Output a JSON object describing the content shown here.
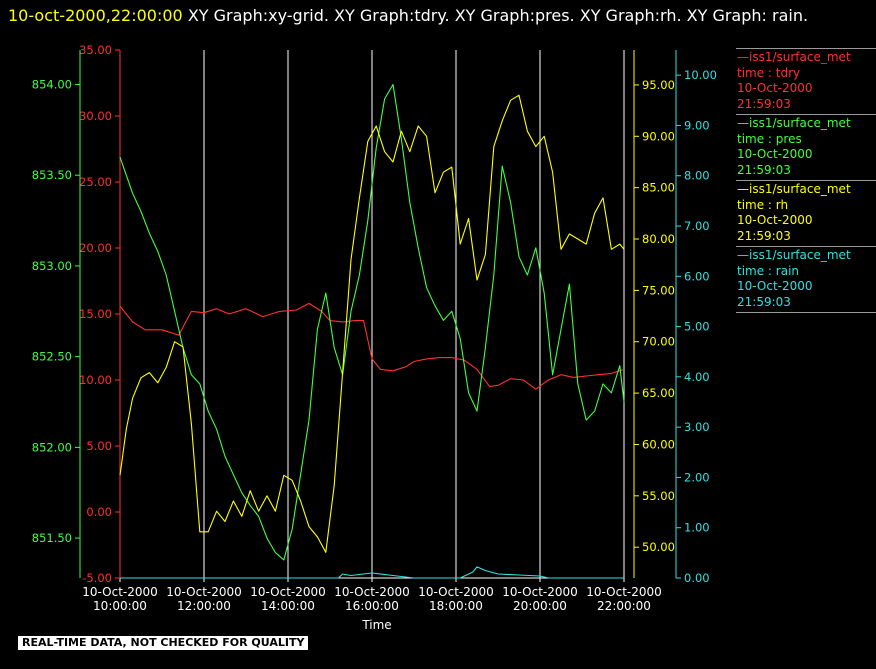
{
  "header": {
    "timestamp": "10-oct-2000,22:00:00",
    "graphs_text": " XY Graph:xy-grid.  XY Graph:tdry.  XY Graph:pres.  XY Graph:rh.  XY Graph: rain."
  },
  "disclaimer": "REAL-TIME DATA, NOT CHECKED FOR QUALITY",
  "colors": {
    "tdry": "#ff3030",
    "pres": "#40ff40",
    "rh": "#ffff00",
    "rain": "#30e0e0",
    "grid": "#ffffff"
  },
  "legend": [
    {
      "dataset": "iss1/surface_met",
      "label": "time : tdry",
      "date": "10-Oct-2000",
      "time": "21:59:03",
      "color": "#ff3030"
    },
    {
      "dataset": "iss1/surface_met",
      "label": "time : pres",
      "date": "10-Oct-2000",
      "time": "21:59:03",
      "color": "#40ff40"
    },
    {
      "dataset": "iss1/surface_met",
      "label": "time : rh",
      "date": "10-Oct-2000",
      "time": "21:59:03",
      "color": "#ffff00"
    },
    {
      "dataset": "iss1/surface_met",
      "label": "time : rain",
      "date": "10-Oct-2000",
      "time": "21:59:03",
      "color": "#30e0e0"
    }
  ],
  "chart_data": {
    "type": "line",
    "xlabel": "Time",
    "xlim": [
      10,
      22
    ],
    "x_ticks": [
      {
        "v": 10,
        "date": "10-Oct-2000",
        "time": "10:00:00"
      },
      {
        "v": 12,
        "date": "10-Oct-2000",
        "time": "12:00:00"
      },
      {
        "v": 14,
        "date": "10-Oct-2000",
        "time": "14:00:00"
      },
      {
        "v": 16,
        "date": "10-Oct-2000",
        "time": "16:00:00"
      },
      {
        "v": 18,
        "date": "10-Oct-2000",
        "time": "18:00:00"
      },
      {
        "v": 20,
        "date": "10-Oct-2000",
        "time": "20:00:00"
      },
      {
        "v": 22,
        "date": "10-Oct-2000",
        "time": "22:00:00"
      }
    ],
    "grid": true,
    "axes": {
      "tdry": {
        "range": [
          -5,
          35
        ],
        "ticks": [
          "-5.00",
          "0.00",
          "5.00",
          "10.00",
          "15.00",
          "20.00",
          "25.00",
          "30.00",
          "35.00"
        ]
      },
      "pres": {
        "range": [
          851.28,
          854.19
        ],
        "ticks": [
          "851.50",
          "852.00",
          "852.50",
          "853.00",
          "853.50",
          "854.00"
        ]
      },
      "rh": {
        "range": [
          47.0,
          98.4
        ],
        "ticks": [
          "50.00",
          "55.00",
          "60.00",
          "65.00",
          "70.00",
          "75.00",
          "80.00",
          "85.00",
          "90.00",
          "95.00"
        ]
      },
      "rain": {
        "range": [
          0,
          10.5
        ],
        "ticks": [
          "0.00",
          "1.00",
          "2.00",
          "3.00",
          "4.00",
          "5.00",
          "6.00",
          "7.00",
          "8.00",
          "9.00",
          "10.00"
        ]
      }
    },
    "series": [
      {
        "key": "tdry",
        "x": [
          10.0,
          10.3,
          10.6,
          11.0,
          11.4,
          11.7,
          12.0,
          12.3,
          12.6,
          13.0,
          13.4,
          13.8,
          14.2,
          14.5,
          14.8,
          15.0,
          15.3,
          15.6,
          15.8,
          16.0,
          16.2,
          16.5,
          16.8,
          17.0,
          17.3,
          17.6,
          17.9,
          18.2,
          18.5,
          18.8,
          19.0,
          19.3,
          19.6,
          19.9,
          20.2,
          20.5,
          20.8,
          21.1,
          21.4,
          21.7,
          22.0
        ],
        "y": [
          15.6,
          14.4,
          13.8,
          13.8,
          13.4,
          15.2,
          15.1,
          15.4,
          15.0,
          15.4,
          14.8,
          15.2,
          15.3,
          15.8,
          15.2,
          14.5,
          14.4,
          14.5,
          14.5,
          11.6,
          10.8,
          10.7,
          11.0,
          11.4,
          11.6,
          11.7,
          11.7,
          11.5,
          10.8,
          9.5,
          9.6,
          10.1,
          10.0,
          9.3,
          10.0,
          10.4,
          10.2,
          10.3,
          10.4,
          10.5,
          10.8
        ]
      },
      {
        "key": "pres",
        "x": [
          10.0,
          10.15,
          10.3,
          10.5,
          10.7,
          10.9,
          11.1,
          11.3,
          11.5,
          11.7,
          11.9,
          12.1,
          12.3,
          12.5,
          12.7,
          12.9,
          13.1,
          13.3,
          13.5,
          13.7,
          13.9,
          14.1,
          14.3,
          14.5,
          14.7,
          14.9,
          15.1,
          15.3,
          15.5,
          15.7,
          15.9,
          16.1,
          16.3,
          16.5,
          16.7,
          16.9,
          17.1,
          17.3,
          17.5,
          17.7,
          17.9,
          18.1,
          18.3,
          18.5,
          18.7,
          18.9,
          19.1,
          19.3,
          19.5,
          19.7,
          19.9,
          20.1,
          20.3,
          20.5,
          20.7,
          20.9,
          21.1,
          21.3,
          21.5,
          21.7,
          21.9,
          22.0
        ],
        "y": [
          853.6,
          853.5,
          853.4,
          853.3,
          853.18,
          853.08,
          852.95,
          852.75,
          852.55,
          852.4,
          852.35,
          852.2,
          852.1,
          851.95,
          851.85,
          851.75,
          851.68,
          851.62,
          851.5,
          851.42,
          851.38,
          851.55,
          851.85,
          852.15,
          852.65,
          852.85,
          852.55,
          852.4,
          852.75,
          852.95,
          853.25,
          853.65,
          853.92,
          854.0,
          853.7,
          853.35,
          853.1,
          852.88,
          852.78,
          852.7,
          852.75,
          852.6,
          852.3,
          852.2,
          852.55,
          852.95,
          853.55,
          853.35,
          853.05,
          852.95,
          853.1,
          852.85,
          852.4,
          852.65,
          852.9,
          852.35,
          852.15,
          852.2,
          852.35,
          852.3,
          852.45,
          852.25
        ]
      },
      {
        "key": "rh",
        "x": [
          10.0,
          10.15,
          10.3,
          10.5,
          10.7,
          10.9,
          11.1,
          11.3,
          11.5,
          11.7,
          11.9,
          12.1,
          12.3,
          12.5,
          12.7,
          12.9,
          13.1,
          13.3,
          13.5,
          13.7,
          13.9,
          14.1,
          14.3,
          14.5,
          14.7,
          14.9,
          15.1,
          15.3,
          15.5,
          15.7,
          15.9,
          16.1,
          16.3,
          16.5,
          16.7,
          16.9,
          17.1,
          17.3,
          17.5,
          17.7,
          17.9,
          18.1,
          18.3,
          18.5,
          18.7,
          18.9,
          19.1,
          19.3,
          19.5,
          19.7,
          19.9,
          20.1,
          20.3,
          20.5,
          20.7,
          20.9,
          21.1,
          21.3,
          21.5,
          21.7,
          21.9,
          22.0
        ],
        "y": [
          57.0,
          61.5,
          64.5,
          66.5,
          67.0,
          66.0,
          67.5,
          70.0,
          69.5,
          62.0,
          51.5,
          51.5,
          53.5,
          52.5,
          54.5,
          53.0,
          55.5,
          53.5,
          55.0,
          53.5,
          57.0,
          56.5,
          54.5,
          52.0,
          51.0,
          49.5,
          56.0,
          67.0,
          78.0,
          84.0,
          89.5,
          91.0,
          88.5,
          87.5,
          90.5,
          88.5,
          91.0,
          90.0,
          84.5,
          86.5,
          87.0,
          79.5,
          82.0,
          76.0,
          78.5,
          89.0,
          91.5,
          93.5,
          94.0,
          90.5,
          89.0,
          90.0,
          86.5,
          79.0,
          80.5,
          80.0,
          79.5,
          82.5,
          84.0,
          79.0,
          79.5,
          79.0
        ]
      },
      {
        "key": "rain",
        "x": [
          10.0,
          15.2,
          15.3,
          15.5,
          16.0,
          16.5,
          17.0,
          17.5,
          18.1,
          18.4,
          18.5,
          18.7,
          19.0,
          19.5,
          20.0,
          20.2,
          22.0
        ],
        "y": [
          0.0,
          0.0,
          0.08,
          0.05,
          0.1,
          0.05,
          0.0,
          0.0,
          0.0,
          0.12,
          0.22,
          0.15,
          0.08,
          0.06,
          0.04,
          0.0,
          0.0
        ]
      }
    ]
  }
}
